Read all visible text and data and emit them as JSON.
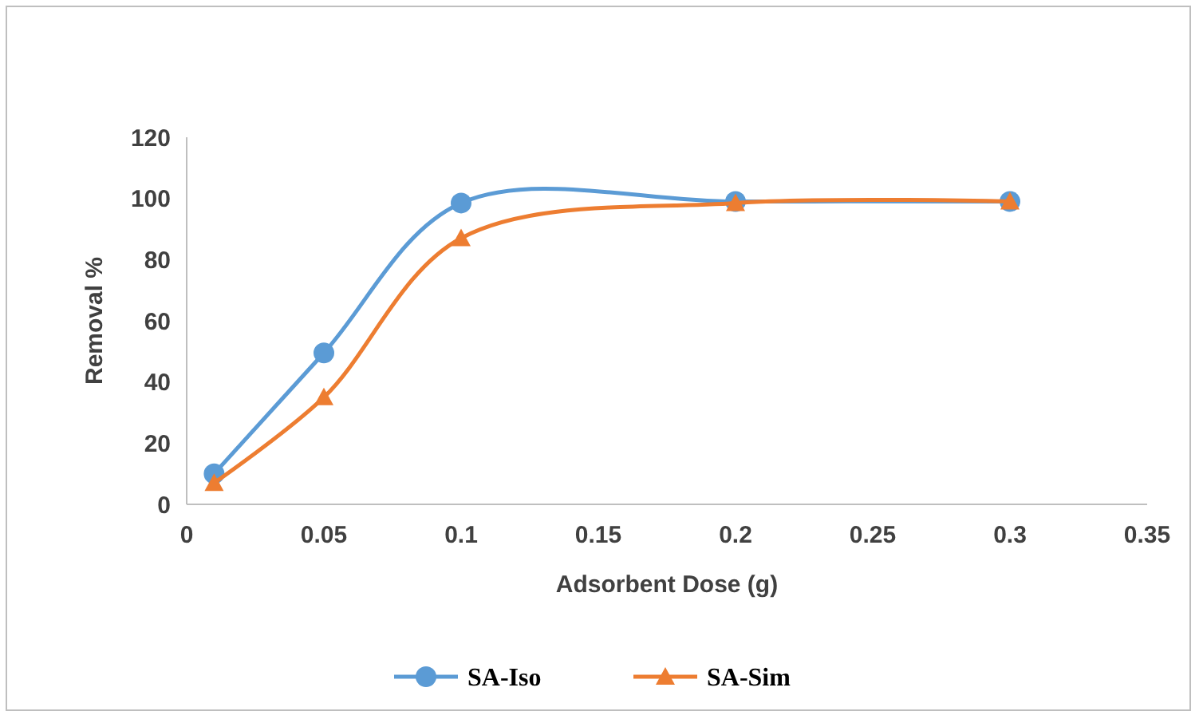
{
  "chart_data": {
    "type": "line",
    "xlabel": "Adsorbent Dose (g)",
    "ylabel": "Removal %",
    "xlim": [
      0,
      0.35
    ],
    "xticks": [
      0,
      0.05,
      0.1,
      0.15,
      0.2,
      0.25,
      0.3,
      0.35
    ],
    "ylim": [
      0,
      120
    ],
    "yticks": [
      0,
      20,
      40,
      60,
      80,
      100,
      120
    ],
    "grid": false,
    "legend": "bottom",
    "line_style": "solid",
    "series": [
      {
        "name": "SA-Iso",
        "color": "#5b9bd5",
        "marker": "circle",
        "x": [
          0.01,
          0.05,
          0.1,
          0.2,
          0.3
        ],
        "values": [
          10,
          49.5,
          98.5,
          99,
          99
        ]
      },
      {
        "name": "SA-Sim",
        "color": "#ed7d31",
        "marker": "triangle",
        "x": [
          0.01,
          0.05,
          0.1,
          0.2,
          0.3
        ],
        "values": [
          7,
          35,
          87,
          98.5,
          99
        ]
      }
    ]
  }
}
